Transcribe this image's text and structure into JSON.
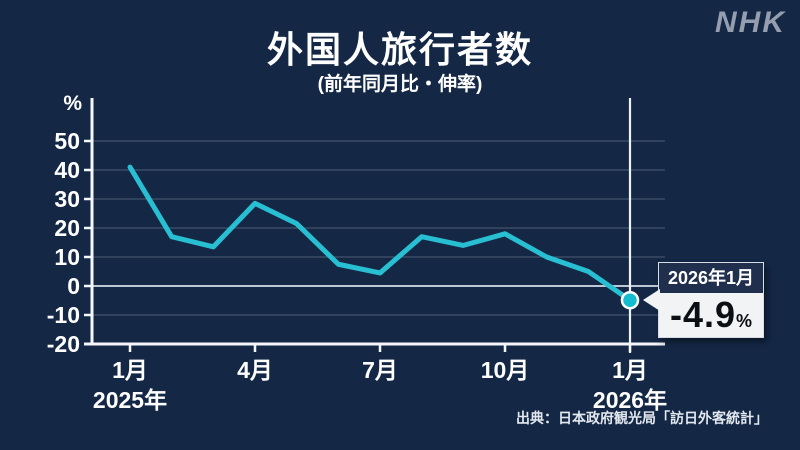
{
  "header": {
    "title": "外国人旅行者数",
    "subtitle": "(前年同月比・伸率)",
    "logo": "NHK"
  },
  "source": "出典：日本政府観光局「訪日外客統計」",
  "callout": {
    "date_label": "2026年1月",
    "value": "-4.9",
    "unit": "%"
  },
  "colors": {
    "background": "#142846",
    "line": "#29bfd3",
    "marker_fill": "#14bccf",
    "marker_ring": "#ffffff",
    "axis": "#f4f6f9",
    "grid": "rgba(255,255,255,0.20)",
    "zero_line": "#bdc7d6",
    "highlight_line": "#eef1f5",
    "callout_dark": "#1f2f4d",
    "callout_light": "#f2f3f5",
    "logo_color": "#949eae"
  },
  "chart_data": {
    "type": "line",
    "title": "外国人旅行者数",
    "subtitle": "(前年同月比・伸率)",
    "unit_label": "%",
    "categories": [
      "2025年1月",
      "2025年2月",
      "2025年3月",
      "2025年4月",
      "2025年5月",
      "2025年6月",
      "2025年7月",
      "2025年8月",
      "2025年9月",
      "2025年10月",
      "2025年11月",
      "2025年12月",
      "2026年1月"
    ],
    "values": [
      41,
      17,
      13.5,
      28.5,
      21.5,
      7.5,
      4.5,
      17,
      14,
      18,
      10,
      5,
      -4.9
    ],
    "y_ticks": [
      50,
      40,
      30,
      20,
      10,
      0,
      -10,
      -20
    ],
    "ylim": [
      -20,
      66
    ],
    "x_ticks": [
      {
        "index": 0,
        "label": "1月",
        "year": "2025年"
      },
      {
        "index": 3,
        "label": "4月"
      },
      {
        "index": 6,
        "label": "7月"
      },
      {
        "index": 9,
        "label": "10月"
      },
      {
        "index": 12,
        "label": "1月",
        "year": "2026年"
      }
    ],
    "highlight_index": 12,
    "highlight_value_label": "-4.9",
    "grid": true,
    "legend": false
  }
}
